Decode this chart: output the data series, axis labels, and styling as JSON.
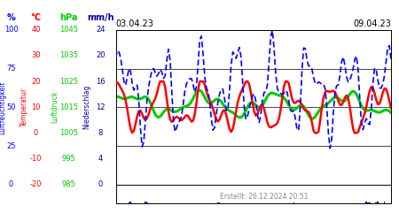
{
  "title_left": "03.04.23",
  "title_right": "09.04.23",
  "footer": "Erstellt: 26.12.2024 20:51",
  "bg_color": "#ffffff",
  "hum_color": "#0000ff",
  "temp_color": "#ff0000",
  "pres_color": "#00cc00",
  "rain_color": "#0000aa",
  "num_points": 168,
  "hum_ticks": [
    100,
    75,
    50,
    25,
    0
  ],
  "temp_ticks": [
    40,
    30,
    20,
    10,
    0,
    -10,
    -20
  ],
  "pres_ticks": [
    1045,
    1035,
    1025,
    1015,
    1005,
    995,
    985
  ],
  "rain_ticks": [
    24,
    20,
    16,
    12,
    8,
    4,
    0
  ],
  "hum_unit": "%",
  "temp_unit": "°C",
  "pres_unit": "hPa",
  "rain_unit": "mm/h",
  "hum_label": "Luftfeuchtigkeit",
  "temp_label": "Temperatur",
  "pres_label": "Luftdruck",
  "rain_label": "Niederschlag"
}
